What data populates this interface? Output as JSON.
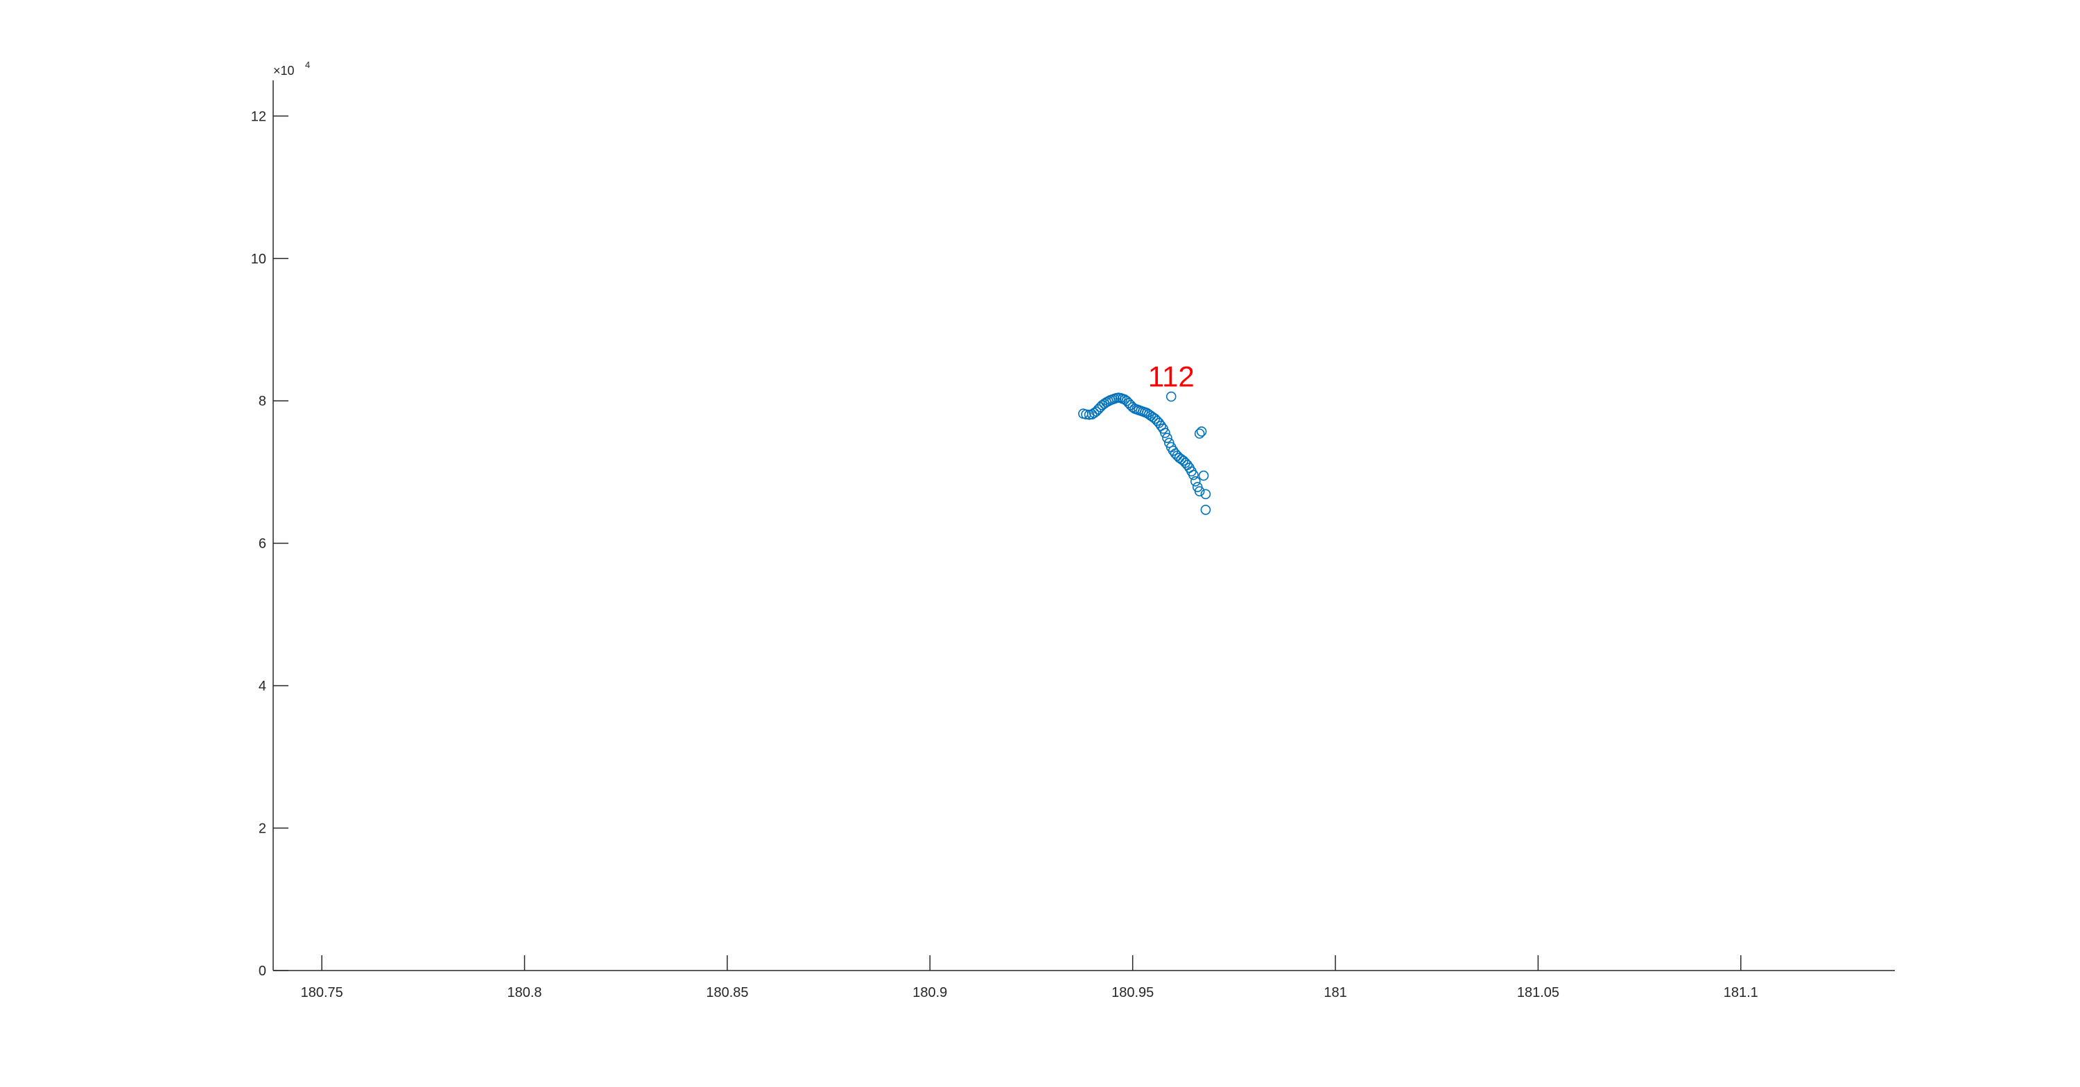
{
  "chart_data": {
    "type": "scatter",
    "title": "",
    "xlabel": "",
    "ylabel": "",
    "xlim": [
      180.738,
      181.138
    ],
    "ylim": [
      0,
      125000
    ],
    "grid": false,
    "legend": "none",
    "x_ticks": [
      180.75,
      180.8,
      180.85,
      180.9,
      180.95,
      181,
      181.05,
      181.1
    ],
    "x_tick_labels": [
      "180.75",
      "180.8",
      "180.85",
      "180.9",
      "180.95",
      "181",
      "181.05",
      "181.1"
    ],
    "y_ticks": [
      0,
      20000,
      40000,
      60000,
      80000,
      100000,
      120000
    ],
    "y_tick_labels": [
      "0",
      "2",
      "4",
      "6",
      "8",
      "10",
      "12"
    ],
    "y_exponent": {
      "base": "×10",
      "power": "4"
    },
    "marker": "open-circle",
    "marker_color": "#0072BD",
    "series": [
      {
        "x": [
          180.9378,
          180.9385,
          180.9393,
          180.94,
          180.9405,
          180.941,
          180.9415,
          180.942,
          180.9425,
          180.943,
          180.9435,
          180.944,
          180.9445,
          180.945,
          180.9455,
          180.946,
          180.9465,
          180.947,
          180.9475,
          180.948,
          180.9485,
          180.949,
          180.9495,
          180.95,
          180.9505,
          180.951,
          180.9515,
          180.952,
          180.9525,
          180.953,
          180.9535,
          180.954,
          180.9545,
          180.955,
          180.9555,
          180.956,
          180.9565,
          180.957,
          180.9575,
          180.958,
          180.9585,
          180.959,
          180.9595,
          180.96,
          180.9605,
          180.961,
          180.9615,
          180.962,
          180.9625,
          180.963,
          180.9635,
          180.964,
          180.9645,
          180.965,
          180.9655,
          180.966,
          180.9665,
          180.9665,
          180.967,
          180.9675,
          180.968,
          180.968
        ],
        "y": [
          78200,
          78100,
          78050,
          78100,
          78300,
          78500,
          78800,
          79100,
          79400,
          79600,
          79800,
          79950,
          80100,
          80200,
          80300,
          80400,
          80450,
          80400,
          80300,
          80200,
          80000,
          79700,
          79400,
          79100,
          78900,
          78800,
          78700,
          78600,
          78500,
          78400,
          78300,
          78100,
          77900,
          77700,
          77500,
          77200,
          76900,
          76500,
          76100,
          75500,
          74800,
          74100,
          73500,
          73000,
          72600,
          72300,
          72000,
          71800,
          71600,
          71300,
          71000,
          70600,
          70100,
          69600,
          68700,
          67900,
          67300,
          75400,
          75700,
          69500,
          66900,
          64700
        ]
      },
      {
        "x": [
          180.9595
        ],
        "y": [
          80600
        ]
      }
    ],
    "annotations": [
      {
        "text": "112",
        "x": 180.9595,
        "y": 83000,
        "color": "#FF0000"
      }
    ]
  }
}
